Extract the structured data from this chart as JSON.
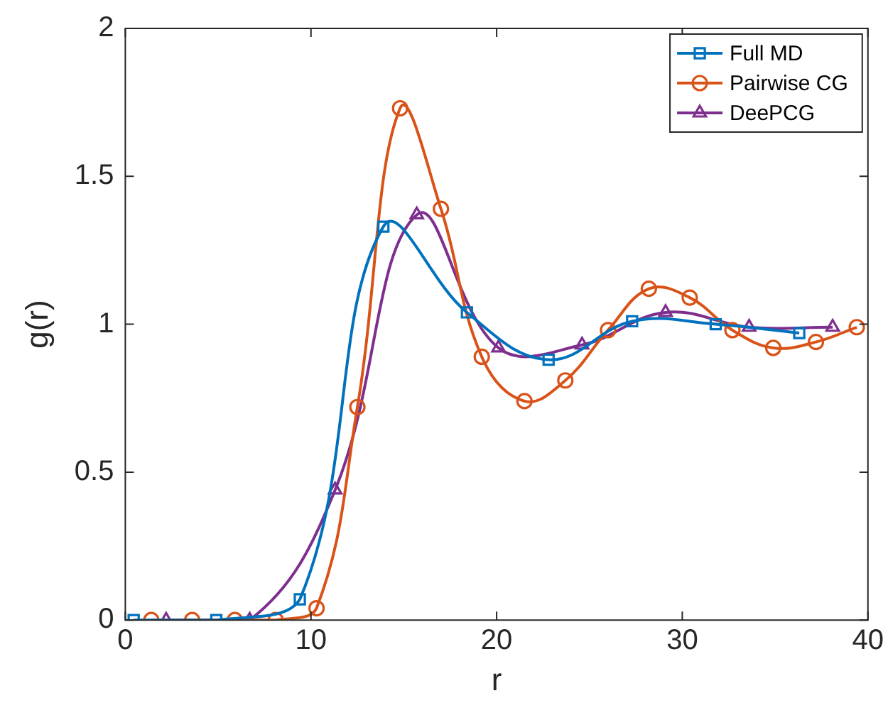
{
  "chart_data": {
    "type": "line",
    "xlabel": "r",
    "ylabel": "g(r)",
    "xlim": [
      0,
      40
    ],
    "xticks": [
      0,
      10,
      20,
      30,
      40
    ],
    "ylim": [
      0,
      2
    ],
    "yticks": [
      0,
      0.5,
      1,
      1.5,
      2
    ],
    "grid": false,
    "legend": "top right",
    "line_style": "solid",
    "series": [
      {
        "name": "Full MD",
        "color": "#0072bd",
        "marker": "square",
        "x": [
          0.45,
          4.9,
          9.4,
          13.9,
          18.4,
          22.8,
          27.3,
          31.8,
          36.3
        ],
        "values": [
          0,
          0,
          0.07,
          1.33,
          1.04,
          0.88,
          1.01,
          1.0,
          0.97
        ]
      },
      {
        "name": "Pairwise CG",
        "color": "#d95319",
        "marker": "circle",
        "x": [
          1.4,
          3.6,
          5.9,
          8.1,
          10.3,
          12.5,
          14.8,
          17.0,
          19.2,
          21.5,
          23.7,
          26.0,
          28.2,
          30.4,
          32.7,
          34.9,
          37.2,
          39.4
        ],
        "values": [
          0,
          0,
          0,
          0,
          0.04,
          0.72,
          1.73,
          1.39,
          0.89,
          0.74,
          0.81,
          0.98,
          1.12,
          1.09,
          0.98,
          0.92,
          0.94,
          0.99
        ]
      },
      {
        "name": "DeePCG",
        "color": "#7e2f8e",
        "marker": "triangle",
        "x": [
          2.2,
          6.7,
          11.3,
          15.7,
          20.1,
          24.6,
          29.1,
          33.6,
          38.1
        ],
        "values": [
          0,
          0,
          0.44,
          1.37,
          0.92,
          0.93,
          1.04,
          0.99,
          0.99
        ]
      }
    ]
  }
}
